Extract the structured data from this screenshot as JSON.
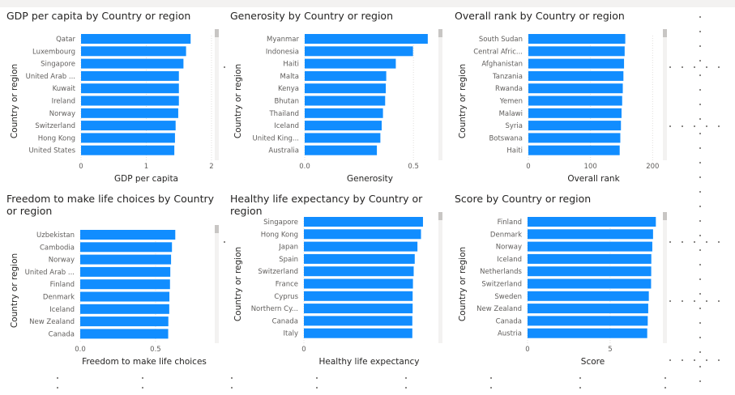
{
  "chart_data": [
    {
      "type": "bar",
      "orientation": "horizontal",
      "title": "GDP per capita by Country or region",
      "xlabel": "GDP per capita",
      "ylabel": "Country or region",
      "categories": [
        "Qatar",
        "Luxembourg",
        "Singapore",
        "United Arab ...",
        "Kuwait",
        "Ireland",
        "Norway",
        "Switzerland",
        "Hong Kong",
        "United States"
      ],
      "values": [
        1.68,
        1.61,
        1.57,
        1.5,
        1.5,
        1.5,
        1.49,
        1.45,
        1.44,
        1.43
      ],
      "xlim": [
        0,
        2
      ],
      "ticks": [
        "0",
        "1",
        "2"
      ],
      "color": "#118DFF",
      "grid": true
    },
    {
      "type": "bar",
      "orientation": "horizontal",
      "title": "Generosity by Country or region",
      "xlabel": "Generosity",
      "ylabel": "Country or region",
      "categories": [
        "Myanmar",
        "Indonesia",
        "Haiti",
        "Malta",
        "Kenya",
        "Bhutan",
        "Thailand",
        "Iceland",
        "United King...",
        "Australia"
      ],
      "values": [
        0.566,
        0.498,
        0.419,
        0.375,
        0.373,
        0.37,
        0.36,
        0.354,
        0.348,
        0.332
      ],
      "xlim": [
        0,
        0.6
      ],
      "ticks": [
        "0.0",
        "0.5"
      ],
      "color": "#118DFF",
      "grid": true
    },
    {
      "type": "bar",
      "orientation": "horizontal",
      "title": "Overall rank by Country or region",
      "xlabel": "Overall rank",
      "ylabel": "Country or region",
      "categories": [
        "South Sudan",
        "Central Afric...",
        "Afghanistan",
        "Tanzania",
        "Rwanda",
        "Yemen",
        "Malawi",
        "Syria",
        "Botswana",
        "Haiti"
      ],
      "values": [
        156,
        155,
        154,
        153,
        152,
        151,
        150,
        149,
        148,
        147
      ],
      "xlim": [
        0,
        210
      ],
      "ticks": [
        "0",
        "100",
        "200"
      ],
      "color": "#118DFF",
      "grid": true
    },
    {
      "type": "bar",
      "orientation": "horizontal",
      "title": "Freedom to make life choices by Country or region",
      "xlabel": "Freedom to make life choices",
      "ylabel": "Country or region",
      "categories": [
        "Uzbekistan",
        "Cambodia",
        "Norway",
        "United Arab ...",
        "Finland",
        "Denmark",
        "Iceland",
        "New Zealand",
        "Canada"
      ],
      "values": [
        0.631,
        0.609,
        0.603,
        0.598,
        0.596,
        0.592,
        0.591,
        0.585,
        0.584
      ],
      "xlim": [
        0,
        0.85
      ],
      "ticks": [
        "0.0",
        "0.5"
      ],
      "color": "#118DFF",
      "grid": true
    },
    {
      "type": "bar",
      "orientation": "horizontal",
      "title": "Healthy life expectancy by Country or region",
      "xlabel": "Healthy life expectancy",
      "ylabel": "Country or region",
      "categories": [
        "Singapore",
        "Hong Kong",
        "Japan",
        "Spain",
        "Switzerland",
        "France",
        "Cyprus",
        "Northern Cy...",
        "Canada",
        "Italy"
      ],
      "values": [
        1.141,
        1.122,
        1.088,
        1.062,
        1.052,
        1.045,
        1.042,
        1.042,
        1.039,
        1.039
      ],
      "xlim": [
        0,
        1.25
      ],
      "ticks": [
        "0"
      ],
      "color": "#118DFF",
      "grid": true
    },
    {
      "type": "bar",
      "orientation": "horizontal",
      "title": "Score by Country or region",
      "xlabel": "Score",
      "ylabel": "Country or region",
      "categories": [
        "Finland",
        "Denmark",
        "Norway",
        "Iceland",
        "Netherlands",
        "Switzerland",
        "Sweden",
        "New Zealand",
        "Canada",
        "Austria"
      ],
      "values": [
        7.769,
        7.6,
        7.554,
        7.494,
        7.488,
        7.48,
        7.343,
        7.307,
        7.278,
        7.246
      ],
      "xlim": [
        0,
        7.9
      ],
      "ticks": [
        "0",
        "5"
      ],
      "color": "#118DFF",
      "grid": true
    }
  ]
}
